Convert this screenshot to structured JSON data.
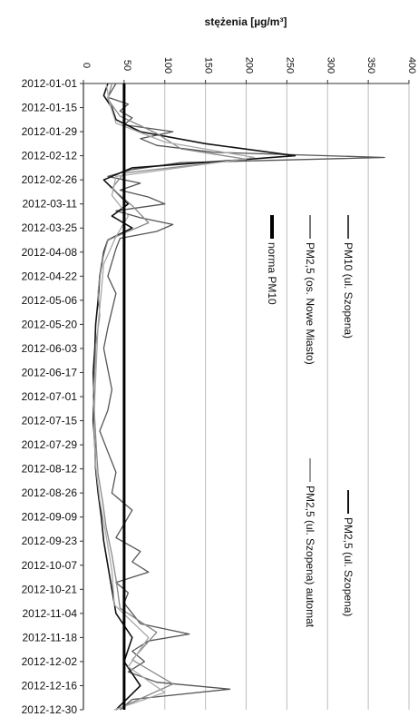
{
  "chart_data": {
    "type": "line",
    "orientation": "rotated-90-clockwise",
    "ylabel": "stężenia [µg/m³]",
    "xlabel": "",
    "ylim": [
      0,
      400
    ],
    "yticks": [
      0,
      50,
      100,
      150,
      200,
      250,
      300,
      350,
      400
    ],
    "ytick_labels": [
      "0",
      "50",
      "100",
      "150",
      "200",
      "250",
      "300",
      "350",
      "400"
    ],
    "x_range": [
      "2012-01-01",
      "2012-12-30"
    ],
    "categories": [
      "2012-01-01",
      "2012-01-15",
      "2012-01-29",
      "2012-02-12",
      "2012-02-26",
      "2012-03-11",
      "2012-03-25",
      "2012-04-08",
      "2012-04-22",
      "2012-05-06",
      "2012-05-20",
      "2012-06-03",
      "2012-06-17",
      "2012-07-01",
      "2012-07-15",
      "2012-07-29",
      "2012-08-12",
      "2012-08-26",
      "2012-09-09",
      "2012-09-23",
      "2012-10-07",
      "2012-10-21",
      "2012-11-04",
      "2012-11-18",
      "2012-12-02",
      "2012-12-16",
      "2012-12-30"
    ],
    "grid": "major y",
    "legend": [
      {
        "label": "PM10 (ul. Szopena)",
        "color": "#444444"
      },
      {
        "label": "PM2,5 (ul. Szopena)",
        "color": "#111111"
      },
      {
        "label": "PM2,5 (os. Nowe Miasto)",
        "color": "#777777"
      },
      {
        "label": "PM2,5 (ul. Szopena) automat",
        "color": "#9a9a9a"
      },
      {
        "label": "norma PM10",
        "color": "#000000"
      }
    ],
    "series": [
      {
        "name": "PM10 (ul. Szopena)",
        "color": "#555555",
        "x": [
          "2012-01-01",
          "2012-01-05",
          "2012-01-09",
          "2012-01-13",
          "2012-01-17",
          "2012-01-21",
          "2012-01-25",
          "2012-01-29",
          "2012-02-02",
          "2012-02-06",
          "2012-02-10",
          "2012-02-13",
          "2012-02-16",
          "2012-02-20",
          "2012-02-24",
          "2012-02-28",
          "2012-03-03",
          "2012-03-07",
          "2012-03-11",
          "2012-03-15",
          "2012-03-19",
          "2012-03-23",
          "2012-03-27",
          "2012-03-31",
          "2012-04-06",
          "2012-04-14",
          "2012-04-22",
          "2012-05-02",
          "2012-05-12",
          "2012-05-22",
          "2012-06-03",
          "2012-06-15",
          "2012-06-27",
          "2012-07-09",
          "2012-07-21",
          "2012-08-02",
          "2012-08-14",
          "2012-08-26",
          "2012-09-05",
          "2012-09-13",
          "2012-09-21",
          "2012-09-29",
          "2012-10-05",
          "2012-10-11",
          "2012-10-17",
          "2012-10-23",
          "2012-10-29",
          "2012-11-04",
          "2012-11-10",
          "2012-11-16",
          "2012-11-20",
          "2012-11-26",
          "2012-12-02",
          "2012-12-08",
          "2012-12-14",
          "2012-12-18",
          "2012-12-24",
          "2012-12-30"
        ],
        "values": [
          40,
          35,
          30,
          55,
          45,
          60,
          50,
          110,
          70,
          90,
          160,
          370,
          120,
          60,
          30,
          70,
          45,
          80,
          100,
          40,
          70,
          110,
          90,
          45,
          40,
          35,
          30,
          40,
          35,
          30,
          25,
          30,
          35,
          30,
          20,
          30,
          40,
          35,
          60,
          50,
          40,
          70,
          60,
          80,
          40,
          55,
          50,
          60,
          70,
          130,
          80,
          60,
          75,
          55,
          90,
          180,
          60,
          45
        ]
      },
      {
        "name": "PM2,5 (ul. Szopena)",
        "color": "#111111",
        "x": [
          "2012-01-01",
          "2012-01-08",
          "2012-01-15",
          "2012-01-22",
          "2012-01-29",
          "2012-02-05",
          "2012-02-12",
          "2012-02-19",
          "2012-02-26",
          "2012-03-04",
          "2012-03-11",
          "2012-03-18",
          "2012-03-25",
          "2012-04-01",
          "2012-04-08",
          "2012-04-22",
          "2012-05-06",
          "2012-05-20",
          "2012-06-03",
          "2012-06-17",
          "2012-07-01",
          "2012-07-15",
          "2012-07-29",
          "2012-08-12",
          "2012-08-26",
          "2012-09-09",
          "2012-09-23",
          "2012-10-07",
          "2012-10-21",
          "2012-11-04",
          "2012-11-18",
          "2012-12-02",
          "2012-12-16",
          "2012-12-30"
        ],
        "values": [
          30,
          25,
          35,
          40,
          70,
          150,
          260,
          60,
          25,
          40,
          55,
          35,
          60,
          30,
          25,
          20,
          18,
          15,
          14,
          12,
          13,
          12,
          14,
          15,
          18,
          22,
          25,
          30,
          35,
          40,
          60,
          50,
          70,
          40
        ]
      },
      {
        "name": "PM2,5 (os. Nowe Miasto)",
        "color": "#888888",
        "x": [
          "2012-01-01",
          "2012-01-10",
          "2012-01-20",
          "2012-01-30",
          "2012-02-08",
          "2012-02-14",
          "2012-02-22",
          "2012-03-02",
          "2012-03-12",
          "2012-03-22",
          "2012-04-01",
          "2012-04-15",
          "2012-05-01",
          "2012-05-15",
          "2012-06-01",
          "2012-06-15",
          "2012-07-01",
          "2012-07-15",
          "2012-08-01",
          "2012-08-15",
          "2012-09-01",
          "2012-09-15",
          "2012-10-01",
          "2012-10-15",
          "2012-11-01",
          "2012-11-15",
          "2012-12-01",
          "2012-12-15",
          "2012-12-30"
        ],
        "values": [
          35,
          30,
          45,
          90,
          120,
          200,
          50,
          35,
          60,
          80,
          30,
          22,
          18,
          20,
          15,
          14,
          12,
          14,
          16,
          18,
          24,
          28,
          35,
          40,
          45,
          90,
          60,
          110,
          40
        ]
      },
      {
        "name": "PM2,5 (ul. Szopena) automat",
        "color": "#a8a8a8",
        "x": [
          "2012-01-01",
          "2012-01-12",
          "2012-01-24",
          "2012-02-04",
          "2012-02-13",
          "2012-02-24",
          "2012-03-06",
          "2012-03-18",
          "2012-03-30",
          "2012-04-15",
          "2012-05-01",
          "2012-05-20",
          "2012-06-10",
          "2012-07-01",
          "2012-07-20",
          "2012-08-10",
          "2012-08-30",
          "2012-09-20",
          "2012-10-10",
          "2012-10-30",
          "2012-11-18",
          "2012-12-05",
          "2012-12-20",
          "2012-12-30"
        ],
        "values": [
          28,
          32,
          40,
          100,
          210,
          40,
          35,
          55,
          40,
          25,
          22,
          18,
          16,
          14,
          13,
          15,
          20,
          28,
          35,
          38,
          80,
          55,
          100,
          38
        ]
      },
      {
        "name": "norma PM10",
        "color": "#000000",
        "x": [
          "2012-01-01",
          "2012-12-30"
        ],
        "values": [
          50,
          50
        ]
      }
    ]
  }
}
